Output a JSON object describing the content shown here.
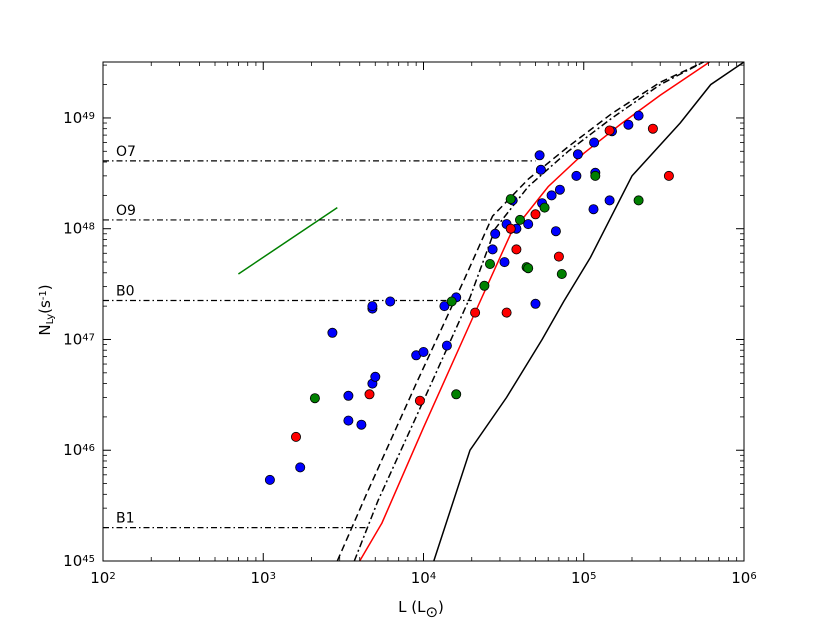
{
  "chart_data": {
    "type": "scatter",
    "title": "",
    "xlabel": "L (L",
    "xlabel_sub": "⊙",
    "xlabel_close": ")",
    "ylabel": "N",
    "ylabel_sub": "Ly",
    "ylabel_rest": "(s",
    "ylabel_sup": "-1",
    "ylabel_close": ")",
    "x_scale": "log",
    "y_scale": "log",
    "xlim": [
      100,
      1000000
    ],
    "ylim": [
      1e+45,
      3.2e+49
    ],
    "x_ticks": [
      {
        "value": 100,
        "base": "10",
        "exp": "2"
      },
      {
        "value": 1000,
        "base": "10",
        "exp": "3"
      },
      {
        "value": 10000,
        "base": "10",
        "exp": "4"
      },
      {
        "value": 100000,
        "base": "10",
        "exp": "5"
      },
      {
        "value": 1000000,
        "base": "10",
        "exp": "6"
      }
    ],
    "y_ticks": [
      {
        "value": 1e+45,
        "base": "10",
        "exp": "45"
      },
      {
        "value": 1e+46,
        "base": "10",
        "exp": "46"
      },
      {
        "value": 1e+47,
        "base": "10",
        "exp": "47"
      },
      {
        "value": 1e+48,
        "base": "10",
        "exp": "48"
      },
      {
        "value": 1e+49,
        "base": "10",
        "exp": "49"
      }
    ],
    "grid": false,
    "reference_lines": [
      {
        "label": "O7",
        "y": 4.1e+48,
        "x_end": 50000
      },
      {
        "label": "O9",
        "y": 1.2e+48,
        "x_end": 30000
      },
      {
        "label": "B0",
        "y": 2.25e+47,
        "x_end": 20000
      },
      {
        "label": "B1",
        "y": 2e+45,
        "x_end": 4500
      }
    ],
    "curves": [
      {
        "style": "solid",
        "color": "#000000",
        "x": [
          11600,
          19500,
          33000,
          55000,
          75000,
          110000,
          200000,
          400000,
          620000,
          1000000
        ],
        "y": [
          1e+45,
          1e+46,
          3e+46,
          1e+47,
          2.2e+47,
          5.5e+47,
          3e+48,
          9e+48,
          2e+49,
          3.2e+49
        ]
      },
      {
        "style": "solid",
        "color": "#ff0000",
        "x": [
          4000,
          5500,
          10000,
          20000,
          35000,
          60000,
          100000,
          170000,
          300000,
          610000
        ],
        "y": [
          1e+45,
          2.2e+45,
          1.6e+46,
          1.5e+47,
          9e+47,
          2.4e+48,
          4.8e+48,
          8.8e+48,
          1.6e+49,
          3.2e+49
        ]
      },
      {
        "style": "dashed",
        "color": "#000000",
        "x": [
          2900,
          4400,
          9000,
          18000,
          27000,
          45000,
          80000,
          150000,
          300000,
          560000
        ],
        "y": [
          1e+45,
          4e+45,
          4e+46,
          3.5e+47,
          1.3e+48,
          2.8e+48,
          5.5e+48,
          1.1e+49,
          2.1e+49,
          3.2e+49
        ]
      },
      {
        "style": "dashdot",
        "color": "#000000",
        "x": [
          3700,
          5200,
          10000,
          19500,
          28000,
          45000,
          80000,
          150000,
          300000,
          560000
        ],
        "y": [
          1e+45,
          3.5e+45,
          2.8e+46,
          2.4e+47,
          1e+48,
          2.4e+48,
          5e+48,
          1e+49,
          2e+49,
          3.2e+49
        ]
      },
      {
        "style": "solid",
        "color": "#008000",
        "x": [
          700,
          2900
        ],
        "y": [
          3.9e+47,
          1.55e+48
        ]
      }
    ],
    "series": [
      {
        "color": "#0000ff",
        "points": [
          [
            1100,
            5.4e+45
          ],
          [
            1700,
            7e+45
          ],
          [
            2700,
            1.15e+47
          ],
          [
            3400,
            1.85e+46
          ],
          [
            3400,
            3.1e+46
          ],
          [
            4100,
            1.7e+46
          ],
          [
            4800,
            1.9e+47
          ],
          [
            4800,
            2e+47
          ],
          [
            4800,
            4e+46
          ],
          [
            5000,
            4.6e+46
          ],
          [
            6200,
            2.2e+47
          ],
          [
            9000,
            7.2e+46
          ],
          [
            10000,
            7.7e+46
          ],
          [
            13500,
            2e+47
          ],
          [
            14000,
            8.8e+46
          ],
          [
            16000,
            2.4e+47
          ],
          [
            27000,
            6.5e+47
          ],
          [
            28000,
            9e+47
          ],
          [
            32000,
            5e+47
          ],
          [
            33000,
            1.1e+48
          ],
          [
            36000,
            1.8e+48
          ],
          [
            38000,
            1e+48
          ],
          [
            45000,
            1.1e+48
          ],
          [
            50000,
            2.1e+47
          ],
          [
            53000,
            4.6e+48
          ],
          [
            54000,
            3.4e+48
          ],
          [
            55000,
            1.7e+48
          ],
          [
            63000,
            2e+48
          ],
          [
            67000,
            9.5e+47
          ],
          [
            71000,
            2.25e+48
          ],
          [
            90000,
            3e+48
          ],
          [
            92000,
            4.7e+48
          ],
          [
            115000,
            1.5e+48
          ],
          [
            116000,
            6e+48
          ],
          [
            118000,
            3.2e+48
          ],
          [
            145000,
            1.8e+48
          ],
          [
            150000,
            7.6e+48
          ],
          [
            190000,
            8.7e+48
          ],
          [
            220000,
            1.05e+49
          ]
        ]
      },
      {
        "color": "#ff0000",
        "points": [
          [
            1600,
            1.32e+46
          ],
          [
            4600,
            3.2e+46
          ],
          [
            9500,
            2.8e+46
          ],
          [
            21000,
            1.75e+47
          ],
          [
            33000,
            1.75e+47
          ],
          [
            35000,
            1e+48
          ],
          [
            38000,
            6.5e+47
          ],
          [
            50000,
            1.35e+48
          ],
          [
            70000,
            5.6e+47
          ],
          [
            145000,
            7.7e+48
          ],
          [
            270000,
            8e+48
          ],
          [
            340000,
            3e+48
          ]
        ]
      },
      {
        "color": "#008000",
        "points": [
          [
            2100,
            2.95e+46
          ],
          [
            15000,
            2.2e+47
          ],
          [
            16000,
            3.2e+46
          ],
          [
            24000,
            3.05e+47
          ],
          [
            26000,
            4.8e+47
          ],
          [
            35000,
            1.85e+48
          ],
          [
            40000,
            1.2e+48
          ],
          [
            44000,
            4.5e+47
          ],
          [
            45000,
            4.4e+47
          ],
          [
            57000,
            1.55e+48
          ],
          [
            73000,
            3.9e+47
          ],
          [
            118000,
            3e+48
          ],
          [
            220000,
            1.8e+48
          ]
        ]
      }
    ]
  }
}
